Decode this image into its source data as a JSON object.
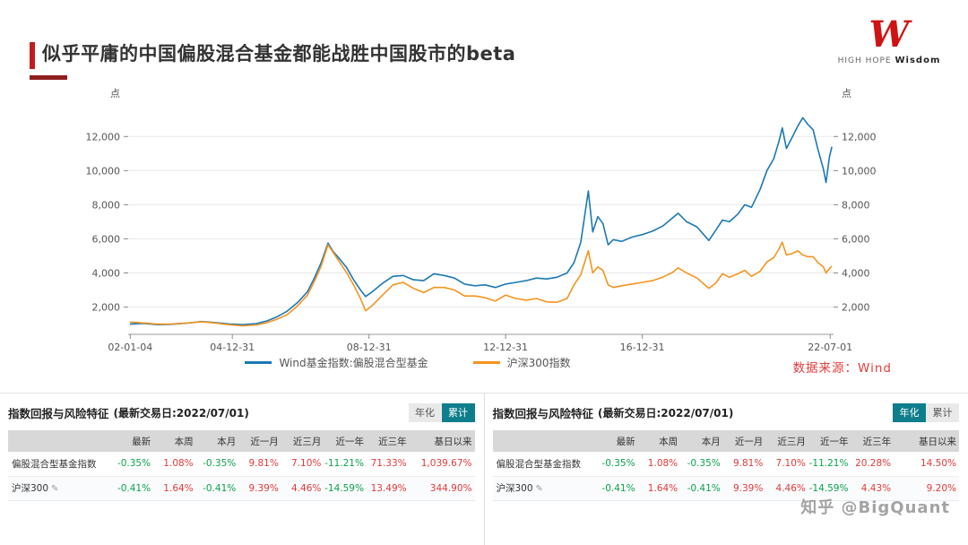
{
  "slide": {
    "title": "似乎平庸的中国偏股混合基金都能战胜中国股市的beta",
    "logo": {
      "mark": "W",
      "line1": "HIGH HOPE",
      "line2": "Wisdom"
    },
    "watermark": "知乎 @BigQuant"
  },
  "icons": {
    "edit": "✎"
  },
  "chart": {
    "source": "数据来源：Wind"
  },
  "chart_data": {
    "type": "line",
    "title": "",
    "xlabel": "",
    "ylabel": "点",
    "y_unit": "点",
    "grid": true,
    "legend_position": "bottom",
    "xlim": [
      2001.95,
      2022.6
    ],
    "ylim": [
      400,
      13800
    ],
    "y_ticks": [
      {
        "v": 2000,
        "label": "2,000"
      },
      {
        "v": 4000,
        "label": "4,000"
      },
      {
        "v": 6000,
        "label": "6,000"
      },
      {
        "v": 8000,
        "label": "8,000"
      },
      {
        "v": 10000,
        "label": "10,000"
      },
      {
        "v": 12000,
        "label": "12,000"
      }
    ],
    "x_ticks": [
      {
        "v": 2002.01,
        "label": "02-01-04"
      },
      {
        "v": 2005.0,
        "label": "04-12-31"
      },
      {
        "v": 2009.0,
        "label": "08-12-31"
      },
      {
        "v": 2013.0,
        "label": "12-12-31"
      },
      {
        "v": 2017.0,
        "label": "16-12-31"
      },
      {
        "v": 2022.5,
        "label": "22-07-01"
      }
    ],
    "series": [
      {
        "id": "fund-index",
        "name": "Wind基金指数:偏股混合型基金",
        "color": "#1b79b5",
        "points": [
          [
            2002.0,
            1000
          ],
          [
            2002.4,
            1040
          ],
          [
            2002.8,
            970
          ],
          [
            2003.2,
            990
          ],
          [
            2003.7,
            1060
          ],
          [
            2004.1,
            1150
          ],
          [
            2004.5,
            1090
          ],
          [
            2004.9,
            1010
          ],
          [
            2005.3,
            970
          ],
          [
            2005.7,
            1030
          ],
          [
            2006.0,
            1180
          ],
          [
            2006.3,
            1420
          ],
          [
            2006.6,
            1750
          ],
          [
            2006.9,
            2250
          ],
          [
            2007.2,
            2900
          ],
          [
            2007.4,
            3700
          ],
          [
            2007.6,
            4600
          ],
          [
            2007.8,
            5750
          ],
          [
            2007.95,
            5250
          ],
          [
            2008.15,
            4800
          ],
          [
            2008.35,
            4300
          ],
          [
            2008.55,
            3600
          ],
          [
            2008.75,
            3000
          ],
          [
            2008.9,
            2620
          ],
          [
            2009.1,
            2900
          ],
          [
            2009.4,
            3400
          ],
          [
            2009.7,
            3800
          ],
          [
            2010.0,
            3850
          ],
          [
            2010.3,
            3600
          ],
          [
            2010.6,
            3550
          ],
          [
            2010.9,
            3950
          ],
          [
            2011.2,
            3850
          ],
          [
            2011.5,
            3700
          ],
          [
            2011.8,
            3350
          ],
          [
            2012.1,
            3250
          ],
          [
            2012.4,
            3300
          ],
          [
            2012.7,
            3150
          ],
          [
            2013.0,
            3350
          ],
          [
            2013.3,
            3450
          ],
          [
            2013.6,
            3550
          ],
          [
            2013.9,
            3700
          ],
          [
            2014.2,
            3650
          ],
          [
            2014.5,
            3750
          ],
          [
            2014.8,
            4000
          ],
          [
            2015.0,
            4600
          ],
          [
            2015.2,
            5800
          ],
          [
            2015.42,
            8800
          ],
          [
            2015.55,
            6400
          ],
          [
            2015.7,
            7300
          ],
          [
            2015.85,
            6900
          ],
          [
            2016.0,
            5650
          ],
          [
            2016.15,
            5950
          ],
          [
            2016.4,
            5850
          ],
          [
            2016.7,
            6100
          ],
          [
            2017.0,
            6250
          ],
          [
            2017.3,
            6450
          ],
          [
            2017.6,
            6750
          ],
          [
            2017.9,
            7250
          ],
          [
            2018.05,
            7500
          ],
          [
            2018.3,
            7000
          ],
          [
            2018.6,
            6700
          ],
          [
            2018.95,
            5900
          ],
          [
            2019.15,
            6500
          ],
          [
            2019.35,
            7100
          ],
          [
            2019.55,
            7000
          ],
          [
            2019.8,
            7450
          ],
          [
            2020.0,
            8000
          ],
          [
            2020.2,
            7850
          ],
          [
            2020.45,
            8900
          ],
          [
            2020.65,
            10000
          ],
          [
            2020.85,
            10700
          ],
          [
            2021.0,
            11700
          ],
          [
            2021.1,
            12500
          ],
          [
            2021.22,
            11300
          ],
          [
            2021.4,
            12000
          ],
          [
            2021.55,
            12600
          ],
          [
            2021.7,
            13100
          ],
          [
            2021.85,
            12700
          ],
          [
            2022.0,
            12400
          ],
          [
            2022.15,
            11200
          ],
          [
            2022.3,
            10100
          ],
          [
            2022.38,
            9300
          ],
          [
            2022.48,
            10800
          ],
          [
            2022.55,
            11400
          ]
        ]
      },
      {
        "id": "csi300",
        "name": "沪深300指数",
        "color": "#f5941e",
        "points": [
          [
            2002.0,
            1120
          ],
          [
            2002.4,
            1070
          ],
          [
            2002.8,
            1000
          ],
          [
            2003.2,
            1010
          ],
          [
            2003.7,
            1070
          ],
          [
            2004.1,
            1140
          ],
          [
            2004.5,
            1060
          ],
          [
            2004.9,
            970
          ],
          [
            2005.3,
            900
          ],
          [
            2005.7,
            950
          ],
          [
            2006.0,
            1080
          ],
          [
            2006.3,
            1280
          ],
          [
            2006.6,
            1550
          ],
          [
            2006.9,
            2050
          ],
          [
            2007.2,
            2700
          ],
          [
            2007.4,
            3500
          ],
          [
            2007.6,
            4400
          ],
          [
            2007.8,
            5650
          ],
          [
            2007.95,
            5200
          ],
          [
            2008.15,
            4600
          ],
          [
            2008.35,
            4000
          ],
          [
            2008.55,
            3300
          ],
          [
            2008.75,
            2500
          ],
          [
            2008.9,
            1780
          ],
          [
            2009.1,
            2100
          ],
          [
            2009.4,
            2700
          ],
          [
            2009.7,
            3300
          ],
          [
            2010.0,
            3450
          ],
          [
            2010.3,
            3100
          ],
          [
            2010.6,
            2850
          ],
          [
            2010.9,
            3150
          ],
          [
            2011.2,
            3150
          ],
          [
            2011.5,
            3000
          ],
          [
            2011.8,
            2650
          ],
          [
            2012.1,
            2650
          ],
          [
            2012.4,
            2550
          ],
          [
            2012.7,
            2350
          ],
          [
            2013.0,
            2700
          ],
          [
            2013.3,
            2500
          ],
          [
            2013.6,
            2400
          ],
          [
            2013.9,
            2500
          ],
          [
            2014.2,
            2300
          ],
          [
            2014.5,
            2280
          ],
          [
            2014.8,
            2500
          ],
          [
            2015.0,
            3300
          ],
          [
            2015.2,
            3900
          ],
          [
            2015.42,
            5300
          ],
          [
            2015.55,
            4000
          ],
          [
            2015.7,
            4350
          ],
          [
            2015.85,
            4150
          ],
          [
            2016.0,
            3300
          ],
          [
            2016.15,
            3150
          ],
          [
            2016.4,
            3250
          ],
          [
            2016.7,
            3350
          ],
          [
            2017.0,
            3450
          ],
          [
            2017.3,
            3550
          ],
          [
            2017.6,
            3750
          ],
          [
            2017.9,
            4050
          ],
          [
            2018.05,
            4300
          ],
          [
            2018.3,
            4000
          ],
          [
            2018.6,
            3700
          ],
          [
            2018.95,
            3100
          ],
          [
            2019.15,
            3400
          ],
          [
            2019.35,
            3950
          ],
          [
            2019.55,
            3750
          ],
          [
            2019.8,
            3950
          ],
          [
            2020.0,
            4150
          ],
          [
            2020.2,
            3800
          ],
          [
            2020.45,
            4100
          ],
          [
            2020.65,
            4650
          ],
          [
            2020.85,
            4900
          ],
          [
            2021.0,
            5400
          ],
          [
            2021.1,
            5800
          ],
          [
            2021.22,
            5050
          ],
          [
            2021.4,
            5150
          ],
          [
            2021.55,
            5300
          ],
          [
            2021.7,
            5050
          ],
          [
            2021.85,
            4950
          ],
          [
            2022.0,
            4950
          ],
          [
            2022.15,
            4600
          ],
          [
            2022.3,
            4350
          ],
          [
            2022.38,
            4000
          ],
          [
            2022.48,
            4250
          ],
          [
            2022.55,
            4400
          ]
        ]
      }
    ]
  },
  "tables": [
    {
      "title": "指数回报与风险特征",
      "date": "(最新交易日:2022/07/01)",
      "toggles": [
        {
          "label": "年化",
          "active": false
        },
        {
          "label": "累计",
          "active": true
        }
      ],
      "columns": [
        "",
        "最新",
        "本周",
        "本月",
        "近一月",
        "近三月",
        "近一年",
        "近三年",
        "基日以来"
      ],
      "rows": [
        {
          "label": "偏股混合型基金指数",
          "editable": false,
          "values": [
            "-0.35%",
            "1.08%",
            "-0.35%",
            "9.81%",
            "7.10%",
            "-11.21%",
            "71.33%",
            "1,039.67%"
          ]
        },
        {
          "label": "沪深300",
          "editable": true,
          "values": [
            "-0.41%",
            "1.64%",
            "-0.41%",
            "9.39%",
            "4.46%",
            "-14.59%",
            "13.49%",
            "344.90%"
          ]
        }
      ]
    },
    {
      "title": "指数回报与风险特征",
      "date": "(最新交易日:2022/07/01)",
      "toggles": [
        {
          "label": "年化",
          "active": true
        },
        {
          "label": "累计",
          "active": false
        }
      ],
      "columns": [
        "",
        "最新",
        "本周",
        "本月",
        "近一月",
        "近三月",
        "近一年",
        "近三年",
        "基日以来"
      ],
      "rows": [
        {
          "label": "偏股混合型基金指数",
          "editable": false,
          "values": [
            "-0.35%",
            "1.08%",
            "-0.35%",
            "9.81%",
            "7.10%",
            "-11.21%",
            "20.28%",
            "14.50%"
          ]
        },
        {
          "label": "沪深300",
          "editable": true,
          "values": [
            "-0.41%",
            "1.64%",
            "-0.41%",
            "9.39%",
            "4.46%",
            "-14.59%",
            "4.43%",
            "9.20%"
          ]
        }
      ]
    }
  ]
}
